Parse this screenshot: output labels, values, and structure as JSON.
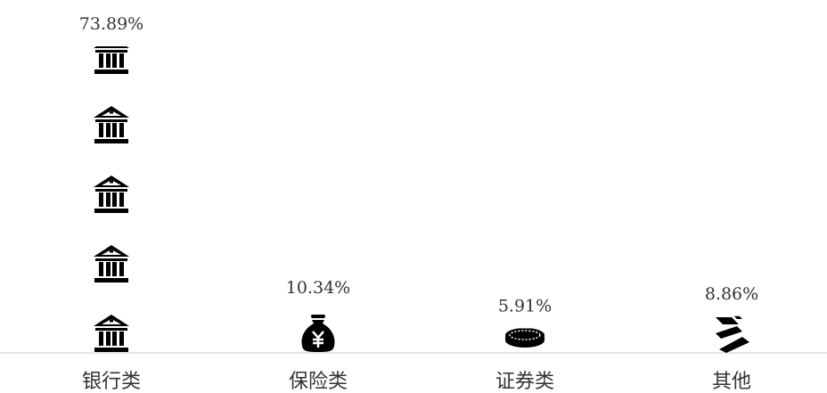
{
  "chart_data": {
    "type": "pictorialBar",
    "categories": [
      "银行类",
      "保险类",
      "证券类",
      "其他"
    ],
    "values": [
      73.89,
      10.34,
      5.91,
      8.86
    ],
    "value_labels": [
      "73.89%",
      "10.34%",
      "5.91%",
      "8.86%"
    ],
    "color": "#000000"
  }
}
